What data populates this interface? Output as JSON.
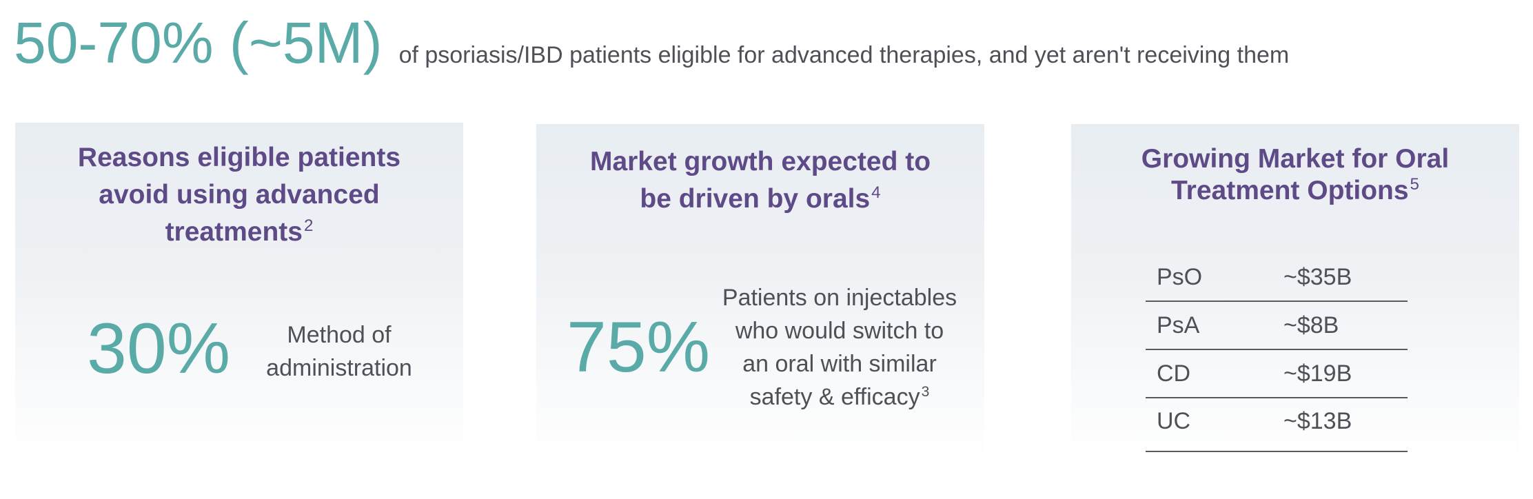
{
  "headline": {
    "stat": "50-70% (~5M)",
    "text": "of psoriasis/IBD patients eligible for advanced therapies, and yet aren't receiving them"
  },
  "panels": [
    {
      "title_lines": [
        "Reasons eligible patients",
        "avoid using advanced",
        "treatments"
      ],
      "footnote": "2",
      "stat": "30%",
      "desc_lines": [
        "Method of",
        "administration"
      ]
    },
    {
      "title_lines": [
        "Market growth expected to",
        "be driven by orals"
      ],
      "footnote": "4",
      "stat": "75%",
      "desc_lines": [
        "Patients on injectables",
        "who would switch to",
        "an oral with similar",
        "safety & efficacy"
      ],
      "desc_footnote": "3"
    },
    {
      "title_lines": [
        "Growing Market for Oral",
        "Treatment Options"
      ],
      "footnote": "5",
      "table": [
        {
          "segment": "PsO",
          "value": "~$35B"
        },
        {
          "segment": "PsA",
          "value": "~$8B"
        },
        {
          "segment": "CD",
          "value": "~$19B"
        },
        {
          "segment": "UC",
          "value": "~$13B"
        }
      ]
    }
  ],
  "colors": {
    "teal": "#5aaaa8",
    "purple": "#5d4a86",
    "text_gray": "#4f4f58"
  }
}
